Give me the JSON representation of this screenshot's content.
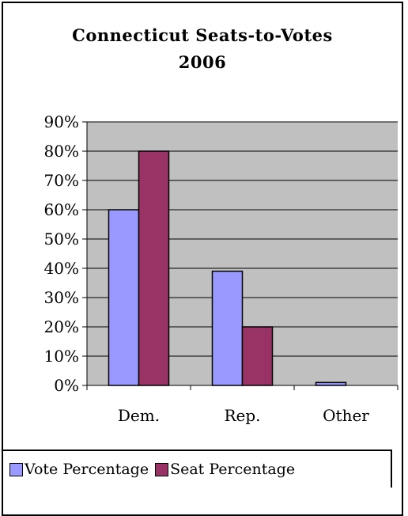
{
  "chart_data": {
    "type": "bar",
    "title": "Connecticut Seats-to-Votes 2006",
    "title_lines": [
      "Connecticut Seats-to-Votes",
      "2006"
    ],
    "categories": [
      "Dem.",
      "Rep.",
      "Other"
    ],
    "series": [
      {
        "name": "Vote Percentage",
        "values": [
          60,
          39,
          1
        ],
        "color": "#9999ff"
      },
      {
        "name": "Seat Percentage",
        "values": [
          80,
          20,
          0
        ],
        "color": "#993366"
      }
    ],
    "ylim": [
      0,
      90
    ],
    "yticks": [
      0,
      10,
      20,
      30,
      40,
      50,
      60,
      70,
      80,
      90
    ],
    "ytick_labels": [
      "0%",
      "10%",
      "20%",
      "30%",
      "40%",
      "50%",
      "60%",
      "70%",
      "80%",
      "90%"
    ],
    "grid": true,
    "plot_background": "#c0c0c0",
    "legend_position": "bottom"
  }
}
